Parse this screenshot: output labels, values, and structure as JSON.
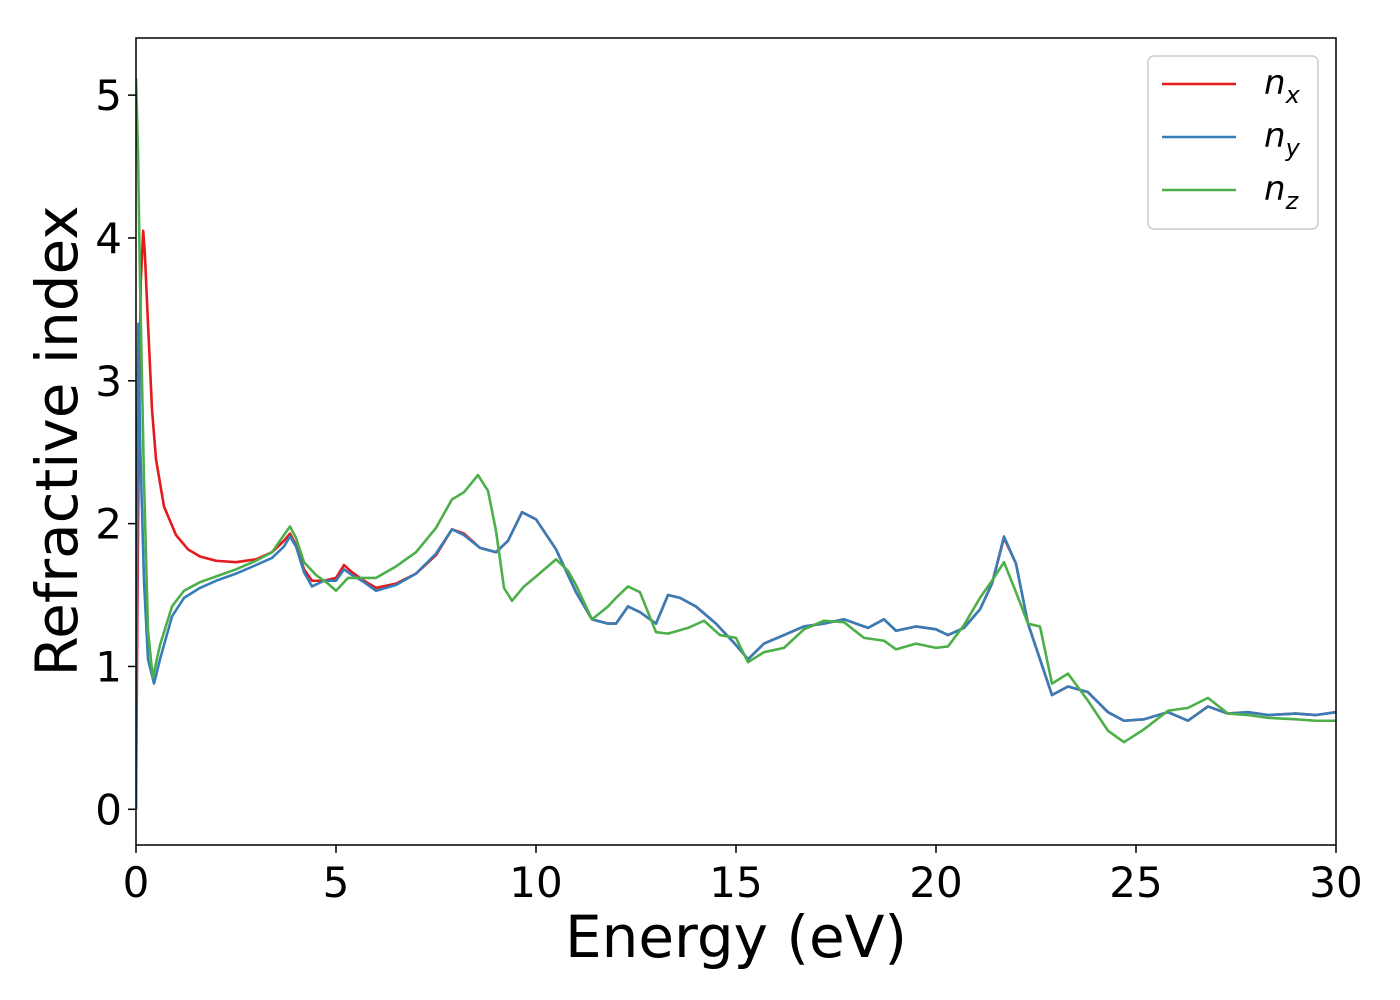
{
  "chart_data": {
    "type": "line",
    "title": "",
    "xlabel": "Energy (eV)",
    "ylabel": "Refractive index",
    "xlim": [
      0,
      30
    ],
    "ylim": [
      -0.25,
      5.4
    ],
    "xticks": [
      0,
      5,
      10,
      15,
      20,
      25,
      30
    ],
    "yticks": [
      0,
      1,
      2,
      3,
      4,
      5
    ],
    "grid": false,
    "legend_position": "top-right",
    "series": [
      {
        "name": "n_x",
        "label_base": "n",
        "label_sub": "x",
        "color": "#e41a1c",
        "points": [
          [
            0,
            0
          ],
          [
            0.03,
            1.2
          ],
          [
            0.07,
            2.6
          ],
          [
            0.12,
            3.7
          ],
          [
            0.18,
            4.05
          ],
          [
            0.22,
            3.9
          ],
          [
            0.3,
            3.4
          ],
          [
            0.4,
            2.8
          ],
          [
            0.5,
            2.45
          ],
          [
            0.7,
            2.12
          ],
          [
            1.0,
            1.92
          ],
          [
            1.3,
            1.82
          ],
          [
            1.6,
            1.77
          ],
          [
            2.0,
            1.74
          ],
          [
            2.5,
            1.73
          ],
          [
            3.0,
            1.75
          ],
          [
            3.4,
            1.8
          ],
          [
            3.7,
            1.88
          ],
          [
            3.85,
            1.93
          ],
          [
            4.0,
            1.85
          ],
          [
            4.2,
            1.68
          ],
          [
            4.4,
            1.6
          ],
          [
            4.7,
            1.6
          ],
          [
            5.0,
            1.62
          ],
          [
            5.2,
            1.71
          ],
          [
            5.4,
            1.66
          ],
          [
            5.7,
            1.6
          ],
          [
            6.0,
            1.55
          ],
          [
            6.5,
            1.58
          ],
          [
            7.0,
            1.65
          ],
          [
            7.5,
            1.78
          ],
          [
            7.9,
            1.96
          ],
          [
            8.2,
            1.93
          ],
          [
            8.6,
            1.83
          ],
          [
            9.0,
            1.8
          ],
          [
            9.3,
            1.88
          ],
          [
            9.65,
            2.08
          ],
          [
            10.0,
            2.03
          ],
          [
            10.5,
            1.82
          ],
          [
            11.0,
            1.52
          ],
          [
            11.4,
            1.33
          ],
          [
            11.8,
            1.3
          ],
          [
            12.0,
            1.3
          ],
          [
            12.3,
            1.42
          ],
          [
            12.6,
            1.38
          ],
          [
            13.0,
            1.3
          ],
          [
            13.3,
            1.5
          ],
          [
            13.6,
            1.48
          ],
          [
            14.0,
            1.42
          ],
          [
            14.5,
            1.3
          ],
          [
            15.0,
            1.15
          ],
          [
            15.3,
            1.05
          ],
          [
            15.7,
            1.16
          ],
          [
            16.2,
            1.22
          ],
          [
            16.7,
            1.28
          ],
          [
            17.2,
            1.3
          ],
          [
            17.7,
            1.33
          ],
          [
            18.3,
            1.27
          ],
          [
            18.7,
            1.33
          ],
          [
            19.0,
            1.25
          ],
          [
            19.5,
            1.28
          ],
          [
            20.0,
            1.26
          ],
          [
            20.3,
            1.22
          ],
          [
            20.7,
            1.27
          ],
          [
            21.1,
            1.4
          ],
          [
            21.4,
            1.58
          ],
          [
            21.7,
            1.9
          ],
          [
            22.0,
            1.72
          ],
          [
            22.3,
            1.3
          ],
          [
            22.6,
            1.05
          ],
          [
            22.9,
            0.8
          ],
          [
            23.3,
            0.86
          ],
          [
            23.8,
            0.82
          ],
          [
            24.3,
            0.68
          ],
          [
            24.7,
            0.62
          ],
          [
            25.2,
            0.63
          ],
          [
            25.8,
            0.68
          ],
          [
            26.3,
            0.62
          ],
          [
            26.8,
            0.72
          ],
          [
            27.3,
            0.67
          ],
          [
            27.8,
            0.68
          ],
          [
            28.3,
            0.66
          ],
          [
            29.0,
            0.67
          ],
          [
            29.5,
            0.66
          ],
          [
            30.0,
            0.68
          ]
        ]
      },
      {
        "name": "n_y",
        "label_base": "n",
        "label_sub": "y",
        "color": "#377eb8",
        "points": [
          [
            0,
            0.0
          ],
          [
            0.03,
            2.0
          ],
          [
            0.06,
            3.4
          ],
          [
            0.1,
            2.6
          ],
          [
            0.2,
            1.6
          ],
          [
            0.3,
            1.05
          ],
          [
            0.45,
            0.88
          ],
          [
            0.6,
            1.05
          ],
          [
            0.9,
            1.35
          ],
          [
            1.2,
            1.48
          ],
          [
            1.6,
            1.55
          ],
          [
            2.0,
            1.6
          ],
          [
            2.5,
            1.65
          ],
          [
            3.0,
            1.71
          ],
          [
            3.4,
            1.76
          ],
          [
            3.7,
            1.84
          ],
          [
            3.85,
            1.91
          ],
          [
            4.0,
            1.84
          ],
          [
            4.2,
            1.66
          ],
          [
            4.4,
            1.56
          ],
          [
            4.7,
            1.6
          ],
          [
            5.0,
            1.6
          ],
          [
            5.2,
            1.68
          ],
          [
            5.4,
            1.64
          ],
          [
            5.7,
            1.59
          ],
          [
            6.0,
            1.53
          ],
          [
            6.5,
            1.57
          ],
          [
            7.0,
            1.65
          ],
          [
            7.5,
            1.79
          ],
          [
            7.9,
            1.96
          ],
          [
            8.2,
            1.92
          ],
          [
            8.6,
            1.83
          ],
          [
            9.0,
            1.8
          ],
          [
            9.3,
            1.88
          ],
          [
            9.65,
            2.08
          ],
          [
            10.0,
            2.03
          ],
          [
            10.5,
            1.82
          ],
          [
            11.0,
            1.52
          ],
          [
            11.4,
            1.33
          ],
          [
            11.8,
            1.3
          ],
          [
            12.0,
            1.3
          ],
          [
            12.3,
            1.42
          ],
          [
            12.6,
            1.38
          ],
          [
            13.0,
            1.3
          ],
          [
            13.3,
            1.5
          ],
          [
            13.6,
            1.48
          ],
          [
            14.0,
            1.42
          ],
          [
            14.5,
            1.3
          ],
          [
            15.0,
            1.15
          ],
          [
            15.3,
            1.05
          ],
          [
            15.7,
            1.16
          ],
          [
            16.2,
            1.22
          ],
          [
            16.7,
            1.28
          ],
          [
            17.2,
            1.3
          ],
          [
            17.7,
            1.33
          ],
          [
            18.3,
            1.27
          ],
          [
            18.7,
            1.33
          ],
          [
            19.0,
            1.25
          ],
          [
            19.5,
            1.28
          ],
          [
            20.0,
            1.26
          ],
          [
            20.3,
            1.22
          ],
          [
            20.7,
            1.27
          ],
          [
            21.1,
            1.4
          ],
          [
            21.4,
            1.58
          ],
          [
            21.7,
            1.91
          ],
          [
            22.0,
            1.72
          ],
          [
            22.3,
            1.3
          ],
          [
            22.6,
            1.05
          ],
          [
            22.9,
            0.8
          ],
          [
            23.3,
            0.86
          ],
          [
            23.8,
            0.82
          ],
          [
            24.3,
            0.68
          ],
          [
            24.7,
            0.62
          ],
          [
            25.2,
            0.63
          ],
          [
            25.8,
            0.68
          ],
          [
            26.3,
            0.62
          ],
          [
            26.8,
            0.72
          ],
          [
            27.3,
            0.67
          ],
          [
            27.8,
            0.68
          ],
          [
            28.3,
            0.66
          ],
          [
            29.0,
            0.67
          ],
          [
            29.5,
            0.66
          ],
          [
            30.0,
            0.68
          ]
        ]
      },
      {
        "name": "n_z",
        "label_base": "n",
        "label_sub": "z",
        "color": "#4daf4a",
        "points": [
          [
            0,
            5.12
          ],
          [
            0.05,
            4.6
          ],
          [
            0.1,
            3.7
          ],
          [
            0.2,
            2.3
          ],
          [
            0.3,
            1.25
          ],
          [
            0.42,
            0.92
          ],
          [
            0.6,
            1.15
          ],
          [
            0.9,
            1.42
          ],
          [
            1.2,
            1.53
          ],
          [
            1.6,
            1.59
          ],
          [
            2.0,
            1.63
          ],
          [
            2.5,
            1.68
          ],
          [
            3.0,
            1.74
          ],
          [
            3.4,
            1.8
          ],
          [
            3.7,
            1.92
          ],
          [
            3.85,
            1.98
          ],
          [
            4.0,
            1.9
          ],
          [
            4.2,
            1.73
          ],
          [
            4.5,
            1.64
          ],
          [
            4.8,
            1.58
          ],
          [
            5.0,
            1.53
          ],
          [
            5.3,
            1.62
          ],
          [
            5.7,
            1.62
          ],
          [
            6.0,
            1.62
          ],
          [
            6.5,
            1.7
          ],
          [
            7.0,
            1.8
          ],
          [
            7.5,
            1.97
          ],
          [
            7.9,
            2.17
          ],
          [
            8.2,
            2.22
          ],
          [
            8.55,
            2.34
          ],
          [
            8.8,
            2.23
          ],
          [
            9.0,
            1.95
          ],
          [
            9.2,
            1.55
          ],
          [
            9.4,
            1.46
          ],
          [
            9.7,
            1.56
          ],
          [
            10.0,
            1.63
          ],
          [
            10.5,
            1.75
          ],
          [
            10.8,
            1.67
          ],
          [
            11.0,
            1.57
          ],
          [
            11.4,
            1.33
          ],
          [
            11.8,
            1.42
          ],
          [
            12.0,
            1.48
          ],
          [
            12.3,
            1.56
          ],
          [
            12.6,
            1.52
          ],
          [
            13.0,
            1.24
          ],
          [
            13.3,
            1.23
          ],
          [
            13.8,
            1.27
          ],
          [
            14.2,
            1.32
          ],
          [
            14.6,
            1.22
          ],
          [
            15.0,
            1.2
          ],
          [
            15.3,
            1.03
          ],
          [
            15.7,
            1.1
          ],
          [
            16.2,
            1.13
          ],
          [
            16.7,
            1.26
          ],
          [
            17.2,
            1.32
          ],
          [
            17.7,
            1.31
          ],
          [
            18.2,
            1.2
          ],
          [
            18.7,
            1.18
          ],
          [
            19.0,
            1.12
          ],
          [
            19.5,
            1.16
          ],
          [
            20.0,
            1.13
          ],
          [
            20.3,
            1.14
          ],
          [
            20.7,
            1.29
          ],
          [
            21.1,
            1.48
          ],
          [
            21.4,
            1.6
          ],
          [
            21.7,
            1.73
          ],
          [
            22.0,
            1.52
          ],
          [
            22.3,
            1.3
          ],
          [
            22.6,
            1.28
          ],
          [
            22.9,
            0.88
          ],
          [
            23.3,
            0.95
          ],
          [
            23.8,
            0.76
          ],
          [
            24.3,
            0.55
          ],
          [
            24.7,
            0.47
          ],
          [
            25.2,
            0.56
          ],
          [
            25.8,
            0.69
          ],
          [
            26.3,
            0.71
          ],
          [
            26.8,
            0.78
          ],
          [
            27.3,
            0.67
          ],
          [
            27.8,
            0.66
          ],
          [
            28.3,
            0.64
          ],
          [
            29.0,
            0.63
          ],
          [
            29.5,
            0.62
          ],
          [
            30.0,
            0.62
          ]
        ]
      }
    ]
  }
}
